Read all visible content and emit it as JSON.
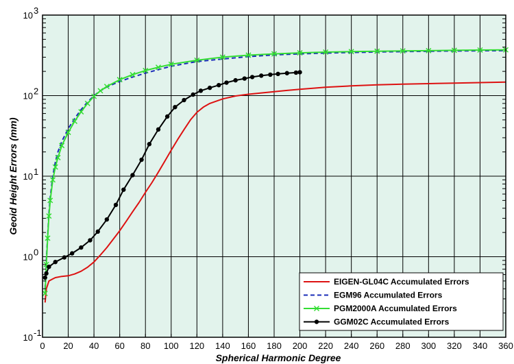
{
  "chart_data": {
    "type": "line",
    "title": "",
    "xlabel": "Spherical Harmonic Degree",
    "ylabel": "Geoid Height Errors (mm)",
    "xlim": [
      0,
      360
    ],
    "ylim": [
      0.1,
      1000
    ],
    "yscale": "log",
    "grid": true,
    "legend_position": "bottom-right",
    "background_color": "#e2f3ec",
    "x_ticks": [
      0,
      20,
      40,
      60,
      80,
      100,
      120,
      140,
      160,
      180,
      200,
      220,
      240,
      260,
      280,
      300,
      320,
      340,
      360
    ],
    "y_ticks": [
      {
        "value": 0.1,
        "base": "10",
        "exp": "-1"
      },
      {
        "value": 1,
        "base": "10",
        "exp": "0"
      },
      {
        "value": 10,
        "base": "10",
        "exp": "1"
      },
      {
        "value": 100,
        "base": "10",
        "exp": "2"
      },
      {
        "value": 1000,
        "base": "10",
        "exp": "3"
      }
    ],
    "series": [
      {
        "name": "EIGEN-GL04C Accumulated Errors",
        "color": "#dd1111",
        "style": "solid",
        "marker": "none",
        "x": [
          2,
          3,
          5,
          8,
          10,
          15,
          20,
          25,
          30,
          35,
          40,
          45,
          50,
          55,
          60,
          65,
          70,
          75,
          80,
          85,
          90,
          95,
          100,
          105,
          110,
          115,
          120,
          125,
          130,
          140,
          150,
          160,
          170,
          180,
          190,
          200,
          220,
          240,
          260,
          280,
          300,
          320,
          340,
          360
        ],
        "y": [
          0.27,
          0.4,
          0.5,
          0.53,
          0.55,
          0.57,
          0.58,
          0.61,
          0.66,
          0.74,
          0.86,
          1.05,
          1.3,
          1.65,
          2.1,
          2.75,
          3.6,
          4.7,
          6.3,
          8.3,
          11.2,
          15.3,
          21,
          28.5,
          38,
          50,
          62,
          72,
          80,
          91,
          99,
          104,
          108,
          112,
          116,
          120,
          127,
          132,
          136,
          139,
          141,
          143,
          145,
          147
        ]
      },
      {
        "name": "EGM96 Accumulated Errors",
        "color": "#1a2cb8",
        "style": "dashed",
        "marker": "none",
        "x": [
          2,
          3,
          4,
          5,
          6,
          8,
          10,
          12,
          15,
          20,
          25,
          30,
          35,
          40,
          45,
          50,
          60,
          70,
          80,
          90,
          100,
          120,
          140,
          160,
          180,
          200,
          220,
          240,
          260,
          280,
          300,
          320,
          340,
          360
        ],
        "y": [
          0.4,
          0.9,
          1.8,
          3.5,
          5.5,
          10,
          15,
          20,
          27,
          39,
          52,
          67,
          83,
          100,
          115,
          128,
          150,
          170,
          190,
          210,
          232,
          265,
          285,
          305,
          320,
          330,
          338,
          343,
          348,
          352,
          355,
          358,
          360,
          362
        ]
      },
      {
        "name": "PGM2000A Accumulated Errors",
        "color": "#33dd33",
        "style": "solid",
        "marker": "x",
        "x": [
          2,
          3,
          4,
          5,
          6,
          8,
          10,
          12,
          15,
          20,
          25,
          30,
          35,
          40,
          45,
          50,
          60,
          70,
          80,
          90,
          100,
          120,
          140,
          160,
          180,
          200,
          220,
          240,
          260,
          280,
          300,
          320,
          340,
          360
        ],
        "y": [
          0.35,
          0.8,
          1.7,
          3.2,
          5,
          9,
          13,
          17,
          24,
          35,
          48,
          63,
          80,
          98,
          115,
          130,
          158,
          182,
          205,
          225,
          245,
          275,
          300,
          318,
          330,
          340,
          347,
          352,
          356,
          359,
          362,
          365,
          368,
          370
        ]
      },
      {
        "name": "GGM02C Accumulated Errors",
        "color": "#000000",
        "style": "solid",
        "marker": "circle",
        "x": [
          2,
          3,
          5,
          10,
          17,
          23,
          30,
          37,
          43,
          50,
          57,
          63,
          70,
          77,
          83,
          90,
          97,
          103,
          110,
          117,
          123,
          130,
          137,
          143,
          150,
          157,
          163,
          170,
          177,
          183,
          190,
          197,
          200
        ],
        "y": [
          0.55,
          0.62,
          0.75,
          0.86,
          0.98,
          1.1,
          1.3,
          1.6,
          2.05,
          2.9,
          4.4,
          6.8,
          10.3,
          16,
          25,
          38,
          55,
          72,
          88,
          103,
          115,
          125,
          135,
          145,
          155,
          163,
          170,
          177,
          182,
          186,
          190,
          193,
          195
        ]
      }
    ]
  }
}
